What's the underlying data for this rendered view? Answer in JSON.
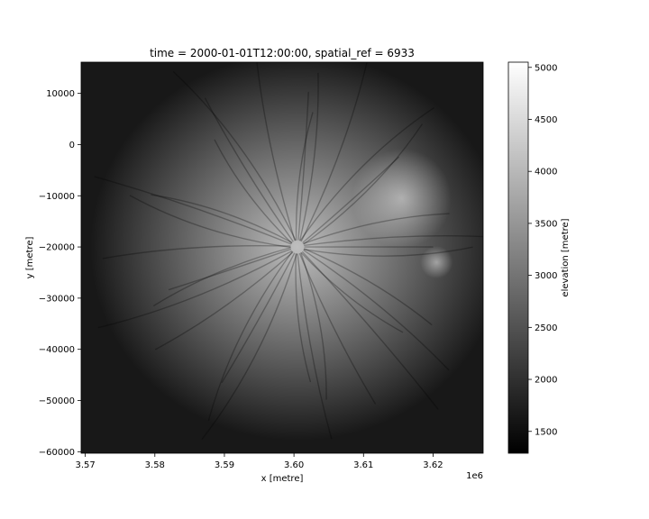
{
  "chart_data": {
    "type": "heatmap",
    "title": "time = 2000-01-01T12:00:00, spatial_ref = 6933",
    "xlabel": "x [metre]",
    "ylabel": "y [metre]",
    "x_offset_label": "1e6",
    "xlim": [
      3.5694,
      3.6272
    ],
    "ylim": [
      -60300,
      16100
    ],
    "x_ticks": [
      3.57,
      3.58,
      3.59,
      3.6,
      3.61,
      3.62
    ],
    "x_tick_labels": [
      "3.57",
      "3.58",
      "3.59",
      "3.60",
      "3.61",
      "3.62"
    ],
    "y_ticks": [
      10000,
      0,
      -10000,
      -20000,
      -30000,
      -40000,
      -50000,
      -60000
    ],
    "y_tick_labels": [
      "10000",
      "0",
      "−10000",
      "−20000",
      "−30000",
      "−40000",
      "−50000",
      "−60000"
    ],
    "colorbar": {
      "label": "elevation [metre]",
      "colormap": "gray",
      "range": [
        1290,
        5050
      ],
      "ticks": [
        1500,
        2000,
        2500,
        3000,
        3500,
        4000,
        4500,
        5000
      ],
      "tick_labels": [
        "1500",
        "2000",
        "2500",
        "3000",
        "3500",
        "4000",
        "4500",
        "5000"
      ]
    },
    "grid": false,
    "peak": {
      "x": 3.6005,
      "y": -20000,
      "elevation": 5000
    },
    "background_elevation": 1650,
    "secondary_peaks": [
      {
        "x": 3.6155,
        "y": -10500,
        "elevation": 3150
      },
      {
        "x": 3.6205,
        "y": -23000,
        "elevation": 2900
      }
    ]
  }
}
